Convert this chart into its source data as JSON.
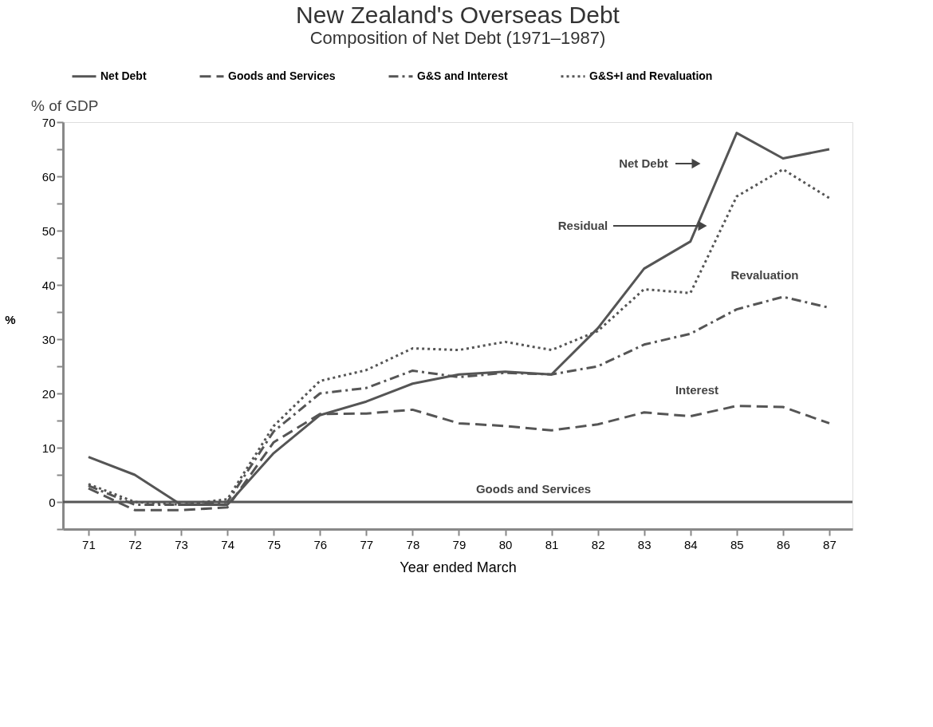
{
  "chart_data": {
    "type": "line",
    "title": "New Zealand's Overseas Debt",
    "subtitle": "Composition of Net Debt (1971–1987)",
    "xlabel": "Year ended March",
    "ylabel": "%",
    "x": [
      71,
      72,
      73,
      74,
      75,
      76,
      77,
      78,
      79,
      80,
      81,
      82,
      83,
      84,
      85,
      86,
      87
    ],
    "series": [
      {
        "name": "Net Debt",
        "color": "#555555",
        "line_style": "solid",
        "values": [
          8.3,
          5,
          -0.5,
          -0.5,
          9,
          16,
          18.5,
          21.8,
          23.5,
          24,
          23.5,
          32,
          43,
          48,
          68,
          63.3,
          65
        ]
      },
      {
        "name": "Goods and Services",
        "color": "#555555",
        "line_style": "dashed",
        "values": [
          2.5,
          -1.5,
          -1.5,
          -1,
          11,
          16.2,
          16.3,
          17,
          14.5,
          14,
          13.2,
          14.3,
          16.5,
          15.8,
          17.7,
          17.5,
          14.5
        ]
      },
      {
        "name": "G&S and Interest",
        "color": "#555555",
        "line_style": "dashdot",
        "values": [
          3,
          -0.5,
          -0.5,
          0,
          13,
          20,
          21,
          24.2,
          23,
          23.8,
          23.5,
          25,
          29,
          31,
          35.5,
          37.8,
          35.8
        ]
      },
      {
        "name": "G&S+I and Revaluation",
        "color": "#555555",
        "line_style": "dotted",
        "values": [
          3.3,
          0,
          -0.5,
          0.5,
          14,
          22.3,
          24.3,
          28.3,
          28,
          29.5,
          28,
          31.5,
          39.2,
          38.5,
          56.3,
          61.3,
          56
        ]
      }
    ],
    "xlim": [
      70.45,
      87.5
    ],
    "xticks": [
      71,
      72,
      73,
      74,
      75,
      76,
      77,
      78,
      79,
      80,
      81,
      82,
      83,
      84,
      85,
      86,
      87
    ],
    "ylim": [
      -5,
      70
    ],
    "yticks": [
      {
        "value": -5,
        "label": null
      },
      0,
      {
        "value": 5,
        "label": null
      },
      10,
      {
        "value": 15,
        "label": null
      },
      20,
      {
        "value": 25,
        "label": null
      },
      30,
      {
        "value": 35,
        "label": null
      },
      40,
      {
        "value": 45,
        "label": null
      },
      50,
      {
        "value": 55,
        "label": null
      },
      60,
      {
        "value": 65,
        "label": null
      },
      70
    ],
    "ref_lines": [
      {
        "axis": "y",
        "value": 0,
        "color": "#555555"
      }
    ],
    "annotations": [
      "% of GDP",
      "Net Debt",
      "Residual",
      "Revaluation",
      "Interest",
      "Goods and Services"
    ],
    "grid": false,
    "legend": "top"
  }
}
